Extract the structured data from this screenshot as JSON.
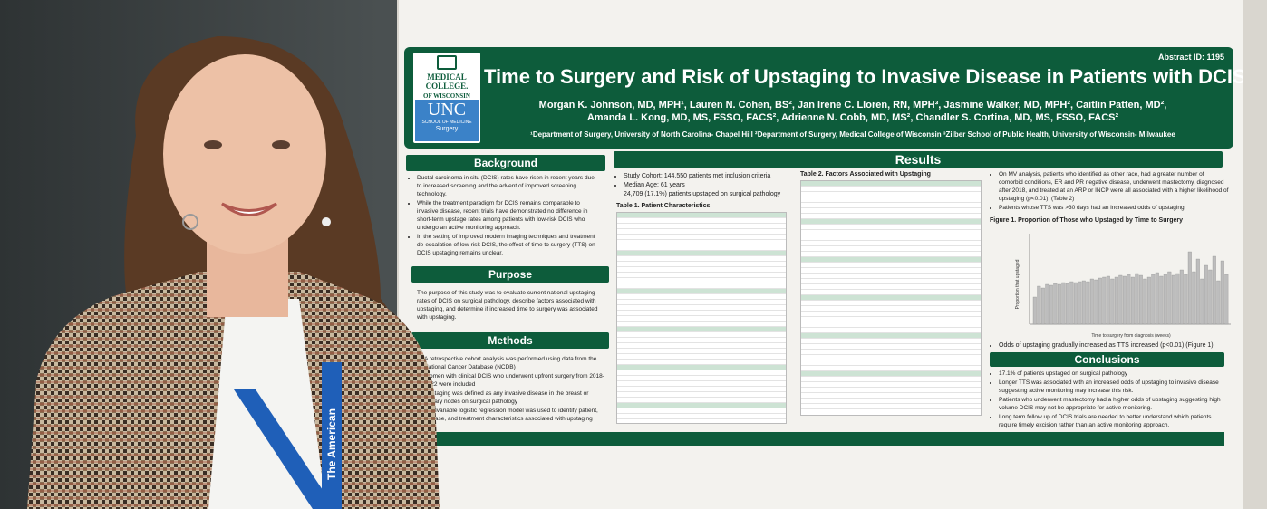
{
  "poster": {
    "abstract_id": "Abstract ID: 1195",
    "title": "Time to Surgery and Risk of Upstaging to Invasive Disease in Patients with DCIS",
    "authors_line1": "Morgan K. Johnson, MD, MPH¹, Lauren N. Cohen, BS², Jan Irene C. Lloren, RN, MPH³, Jasmine Walker, MD, MPH², Caitlin Patten, MD²,",
    "authors_line2": "Amanda L. Kong, MD, MS, FSSO, FACS², Adrienne N. Cobb, MD, MS², Chandler S. Cortina, MD, MS, FSSO, FACS²",
    "affiliations": "¹Department of Surgery, University of North Carolina- Chapel Hill ²Department of Surgery, Medical College of Wisconsin ³Zilber School of Public Health, University of Wisconsin- Milwaukee",
    "logo": {
      "mcw_line1": "MEDICAL",
      "mcw_line2": "COLLEGE.",
      "mcw_line3": "OF WISCONSIN",
      "unc": "UNC",
      "unc_sub": "SCHOOL OF MEDICINE",
      "unc_dept": "Surgery"
    },
    "background": {
      "heading": "Background",
      "bullets": [
        "Ductal carcinoma in situ (DCIS) rates have risen in recent years due to increased screening and the advent of improved screening technology.",
        "While the treatment paradigm for DCIS remains comparable to invasive disease, recent trials have demonstrated no difference in short-term upstage rates among patients with low-risk DCIS who undergo an active monitoring approach.",
        "In the setting of improved modern imaging techniques and treatment de-escalation of low-risk DCIS, the effect of time to surgery (TTS) on DCIS upstaging remains unclear."
      ]
    },
    "purpose": {
      "heading": "Purpose",
      "text": "The purpose of this study was to evaluate current national upstaging rates of DCIS on surgical pathology, describe factors associated with upstaging, and determine if increased time to surgery was associated with upstaging."
    },
    "methods": {
      "heading": "Methods",
      "bullets": [
        "A retrospective cohort analysis was performed using data from the National Cancer Database (NCDB)",
        "Women with clinical DCIS who underwent upfront surgery from 2018-2022 were included",
        "Upstaging was defined as any invasive disease in the breast or axillary nodes on surgical pathology",
        "Multivariable logistic regression model was used to identify patient, disease, and treatment characteristics associated with upstaging"
      ]
    },
    "results": {
      "heading": "Results",
      "cohort": "Study Cohort: 144,550 patients met inclusion criteria",
      "median_age": "Median Age: 61 years",
      "upstaged": "24,709 (17.1%) patients upstaged on surgical pathology",
      "table1_title": "Table 1. Patient Characteristics",
      "table2_title": "Table 2. Factors Associated with Upstaging",
      "mv_text": "On MV analysis, patients who identified as other race, had a greater number of comorbid conditions, ER and PR negative disease, underwent mastectomy, diagnosed after 2018, and treated at an ARP or INCP were all associated with a higher likelihood of upstaging (p<0.01). (Table 2)",
      "tts_text": "Patients whose TTS was >30 days had an increased odds of upstaging",
      "figure_title": "Figure 1. Proportion of Those who Upstaged by Time to Surgery",
      "figure_xlabel": "Time to surgery from diagnosis (weeks)",
      "figure_ylabel": "Proportion that upstaged",
      "odds_text": "Odds of upstaging gradually increased as TTS increased (p<0.01) (Figure 1)."
    },
    "conclusions": {
      "heading": "Conclusions",
      "bullets": [
        "17.1% of patients upstaged on surgical pathology",
        "Longer TTS was associated with an increased odds of upstaging to invasive disease suggesting active monitoring may increase this risk.",
        "Patients who underwent mastectomy had a higher odds of upstaging suggesting high volume DCIS may not be appropriate for active monitoring.",
        "Long term follow up of DCIS trials are needed to better understand which patients require timely excision rather than an active monitoring approach."
      ]
    },
    "lanyard_text": "The American",
    "colors": {
      "header_green": "#0d5c3b",
      "unc_blue": "#3b82c8"
    }
  },
  "chart_data": {
    "type": "bar",
    "title": "Figure 1. Proportion of Those who Upstaged by Time to Surgery",
    "xlabel": "Time to surgery from diagnosis (weeks)",
    "ylabel": "Proportion that upstaged",
    "values": [
      0.3,
      0.42,
      0.4,
      0.44,
      0.43,
      0.45,
      0.44,
      0.46,
      0.45,
      0.47,
      0.46,
      0.47,
      0.48,
      0.47,
      0.5,
      0.49,
      0.51,
      0.52,
      0.53,
      0.5,
      0.52,
      0.54,
      0.53,
      0.55,
      0.52,
      0.56,
      0.54,
      0.5,
      0.52,
      0.55,
      0.57,
      0.53,
      0.55,
      0.58,
      0.54,
      0.56,
      0.6,
      0.55,
      0.8,
      0.58,
      0.72,
      0.5,
      0.65,
      0.6,
      0.75,
      0.48,
      0.7,
      0.55
    ],
    "grid": false
  }
}
